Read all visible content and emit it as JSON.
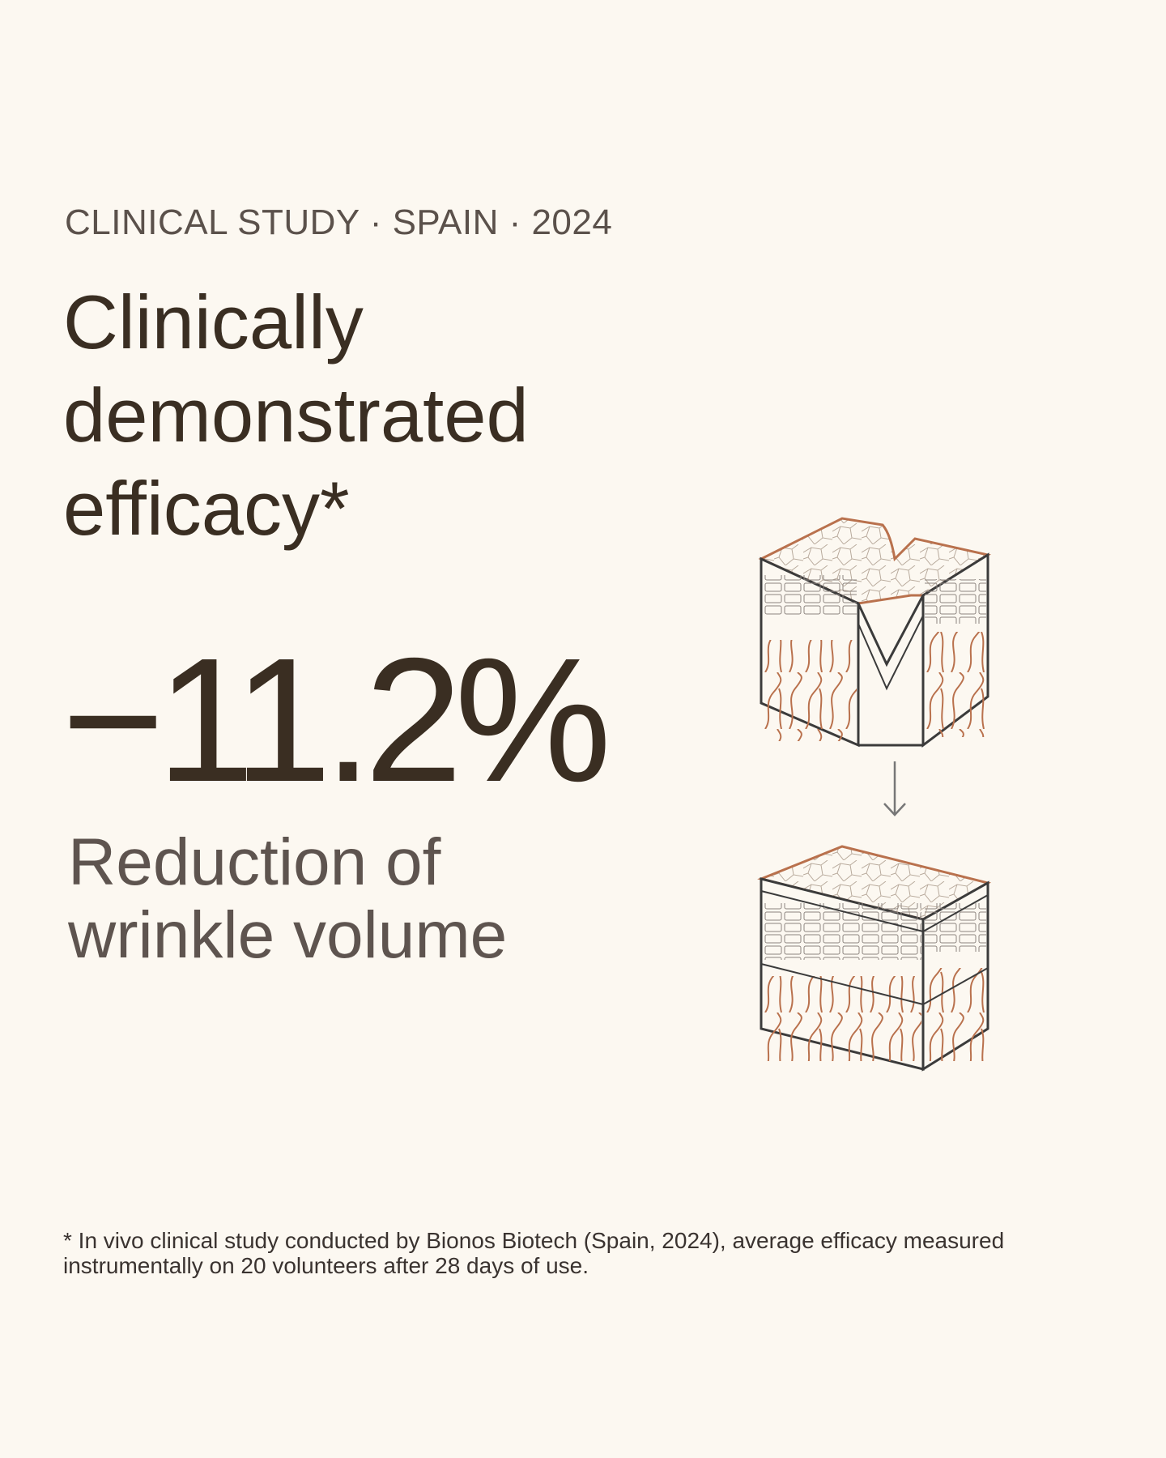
{
  "eyebrow": "CLINICAL STUDY · SPAIN · 2024",
  "headline": "Clinically demonstrated efficacy*",
  "stat": {
    "value": "−11.2%",
    "caption": "Reduction of wrinkle volume"
  },
  "footnote": "* In vivo clinical study conducted by Bionos Biotech (Spain, 2024), average efficacy measured instrumentally on 20 volunteers after 28 days of use.",
  "colors": {
    "background": "#fcf8f1",
    "text_dark": "#3a2e22",
    "text_muted": "#5e544f",
    "accent_copper": "#b9714d",
    "outline": "#3b3b3b"
  },
  "icons": {
    "before": "skin-with-wrinkle-icon",
    "arrow": "arrow-down-icon",
    "after": "smooth-skin-icon"
  }
}
